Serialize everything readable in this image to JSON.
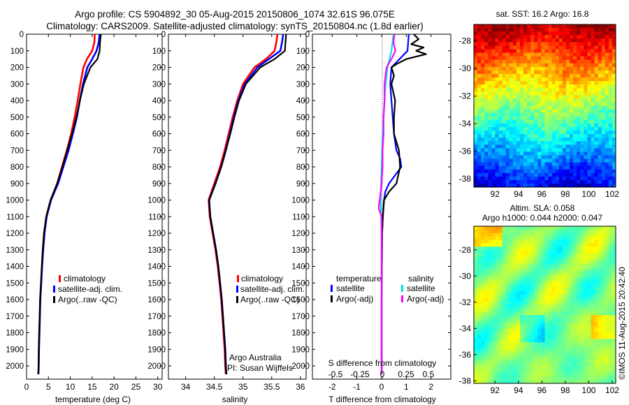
{
  "header": {
    "line1": "Argo profile: CS 5904892_30 05-Aug-2015 20150806_1074 32.61S 96.075E",
    "line2": "Climatology: CARS2009. Satellite-adjusted climatology: synTS_20150804.nc (1.8d earlier)"
  },
  "side_credit": "©IMOS 11-Aug-2015 20:42:40",
  "legend": {
    "climatology": "climatology",
    "satellite_adj": "satellite-adj. clim.",
    "argo": "Argo(..raw -QC)"
  },
  "attribution": {
    "line1": "Argo Australia",
    "line2": "PI: Susan Wijffels"
  },
  "diff_legend": {
    "temperature_head": "temperature",
    "salinity_head": "salinity",
    "satellite": "satellite",
    "argo_adj": "Argo(-adj)"
  },
  "colors": {
    "climatology": "#ff0000",
    "satellite": "#0000ff",
    "argo": "#000000",
    "temp_sat": "#0000ff",
    "temp_argo": "#000000",
    "sal_sat": "#00e0e0",
    "sal_argo": "#ff00ff"
  },
  "chart_data": [
    {
      "type": "line",
      "xlabel": "temperature (deg C)",
      "ylabel": "",
      "xlim": [
        0,
        31
      ],
      "ylim": [
        2080,
        0
      ],
      "x_ticks": [
        "0",
        "5",
        "10",
        "15",
        "20",
        "25",
        "30"
      ],
      "y_ticks": [
        "0",
        "100",
        "200",
        "300",
        "400",
        "500",
        "600",
        "700",
        "800",
        "900",
        "1000",
        "1100",
        "1200",
        "1300",
        "1400",
        "1500",
        "1600",
        "1700",
        "1800",
        "1900",
        "2000"
      ],
      "series": [
        {
          "name": "climatology",
          "depth": [
            0,
            50,
            100,
            150,
            200,
            300,
            400,
            500,
            600,
            700,
            800,
            900,
            1000,
            1100,
            1200,
            1300,
            1400,
            1500,
            1600,
            1700,
            1800,
            1900,
            2000,
            2050
          ],
          "values": [
            15.6,
            15.5,
            15.0,
            13.8,
            13.0,
            12.3,
            11.7,
            11.0,
            10.2,
            9.2,
            8.1,
            7.0,
            5.5,
            4.5,
            4.0,
            3.7,
            3.5,
            3.3,
            3.1,
            3.0,
            2.9,
            2.8,
            2.75,
            2.7
          ]
        },
        {
          "name": "satellite-adj. clim.",
          "depth": [
            0,
            50,
            100,
            150,
            200,
            300,
            400,
            500,
            600,
            700,
            800,
            900,
            1000,
            1100,
            1200,
            1300,
            1400,
            1500,
            1600,
            1700,
            1800,
            1900,
            2000,
            2050
          ],
          "values": [
            16.7,
            16.5,
            16.0,
            15.0,
            13.9,
            12.9,
            12.2,
            11.5,
            10.6,
            9.6,
            8.4,
            7.2,
            5.6,
            4.6,
            4.1,
            3.8,
            3.55,
            3.35,
            3.15,
            3.05,
            2.95,
            2.85,
            2.78,
            2.72
          ]
        },
        {
          "name": "Argo(..raw -QC)",
          "depth": [
            0,
            50,
            100,
            150,
            200,
            300,
            400,
            500,
            600,
            700,
            800,
            900,
            1000,
            1100,
            1200,
            1300,
            1400,
            1500,
            1600,
            1700,
            1800,
            1900,
            2000,
            2050
          ],
          "values": [
            17.0,
            16.8,
            16.7,
            16.2,
            14.6,
            13.1,
            12.2,
            11.4,
            10.4,
            9.3,
            8.2,
            7.0,
            5.5,
            4.5,
            4.0,
            3.7,
            3.5,
            3.3,
            3.1,
            3.0,
            2.9,
            2.8,
            2.75,
            2.7
          ]
        }
      ]
    },
    {
      "type": "line",
      "xlabel": "salinity",
      "ylabel": "",
      "xlim": [
        33.7,
        36.1
      ],
      "ylim": [
        2080,
        0
      ],
      "x_ticks": [
        "34",
        "34.5",
        "35",
        "35.5",
        "36"
      ],
      "series": [
        {
          "name": "climatology",
          "depth": [
            0,
            50,
            100,
            150,
            200,
            300,
            400,
            500,
            600,
            700,
            800,
            900,
            1000,
            1100,
            1200,
            1300,
            1400,
            1500,
            1600,
            1700,
            1800,
            1900,
            2000,
            2050
          ],
          "values": [
            35.6,
            35.58,
            35.55,
            35.4,
            35.2,
            35.0,
            34.9,
            34.82,
            34.75,
            34.68,
            34.6,
            34.5,
            34.4,
            34.42,
            34.47,
            34.52,
            34.56,
            34.59,
            34.62,
            34.64,
            34.66,
            34.68,
            34.69,
            34.7
          ]
        },
        {
          "name": "satellite-adj. clim.",
          "depth": [
            0,
            50,
            100,
            150,
            200,
            300,
            400,
            500,
            600,
            700,
            800,
            900,
            1000,
            1100,
            1200,
            1300,
            1400,
            1500,
            1600,
            1700,
            1800,
            1900,
            2000,
            2050
          ],
          "values": [
            35.7,
            35.68,
            35.65,
            35.45,
            35.25,
            35.03,
            34.92,
            34.84,
            34.77,
            34.7,
            34.62,
            34.52,
            34.41,
            34.43,
            34.48,
            34.53,
            34.57,
            34.6,
            34.63,
            34.65,
            34.67,
            34.69,
            34.7,
            34.71
          ]
        },
        {
          "name": "Argo(..raw -QC)",
          "depth": [
            0,
            50,
            100,
            150,
            200,
            300,
            400,
            500,
            600,
            700,
            800,
            900,
            1000,
            1100,
            1200,
            1300,
            1400,
            1500,
            1600,
            1700,
            1800,
            1900,
            2000,
            2050
          ],
          "values": [
            35.75,
            35.74,
            35.73,
            35.55,
            35.3,
            35.05,
            34.93,
            34.85,
            34.78,
            34.7,
            34.62,
            34.52,
            34.41,
            34.43,
            34.48,
            34.53,
            34.57,
            34.6,
            34.63,
            34.65,
            34.67,
            34.69,
            34.7,
            34.71
          ]
        }
      ]
    },
    {
      "type": "line",
      "xlabel": "T difference from climatology",
      "top_xlabel": "S difference from climatology",
      "xlim": [
        -2.8,
        2.8
      ],
      "ylim": [
        2080,
        0
      ],
      "x_ticks": [
        "-2",
        "-1",
        "0",
        "1",
        "2"
      ],
      "top_ticks": [
        "-0.5",
        "-0.25",
        "0",
        "0.25",
        "0.5"
      ],
      "series": [
        {
          "name": "temperature satellite",
          "depth": [
            0,
            100,
            200,
            300,
            400,
            500,
            600,
            700,
            750,
            800,
            850,
            900,
            950,
            1000,
            1100,
            1200,
            1400,
            1600,
            1800,
            2000,
            2050
          ],
          "values": [
            1.1,
            1.05,
            0.4,
            0.35,
            0.4,
            0.45,
            0.5,
            0.6,
            0.75,
            0.8,
            0.55,
            0.3,
            0.15,
            0.1,
            0.05,
            0.02,
            0.01,
            0.0,
            0.0,
            0.0,
            0.0
          ]
        },
        {
          "name": "temperature Argo(-adj)",
          "depth": [
            0,
            30,
            60,
            80,
            100,
            120,
            150,
            180,
            200,
            250,
            300,
            400,
            500,
            600,
            700,
            800,
            900,
            950,
            1000,
            1100,
            1200,
            1400,
            1600,
            1800,
            2000,
            2050
          ],
          "values": [
            1.3,
            1.5,
            1.2,
            1.7,
            1.4,
            1.8,
            1.0,
            0.6,
            0.4,
            0.5,
            0.4,
            0.55,
            0.5,
            0.5,
            0.7,
            0.75,
            0.6,
            0.3,
            0.1,
            0.05,
            0.02,
            0.01,
            0.0,
            0.0,
            0.0,
            0.0
          ]
        },
        {
          "name": "salinity satellite",
          "depth": [
            0,
            50,
            100,
            150,
            200,
            300,
            400,
            500,
            600,
            800,
            1000,
            1200,
            1400,
            1600,
            1800,
            2000,
            2050
          ],
          "values": [
            0.12,
            0.11,
            0.1,
            0.08,
            0.06,
            0.04,
            0.03,
            0.02,
            0.01,
            0.0,
            -0.01,
            0.0,
            0.0,
            0.0,
            0.0,
            0.0,
            0.0
          ]
        },
        {
          "name": "salinity Argo(-adj)",
          "depth": [
            0,
            50,
            100,
            150,
            200,
            300,
            400,
            500,
            600,
            700,
            800,
            900,
            1000,
            1050,
            1100,
            1200,
            1400,
            1600,
            1800,
            2000,
            2050
          ],
          "values": [
            0.13,
            0.12,
            0.14,
            0.1,
            0.05,
            0.03,
            0.03,
            0.02,
            0.02,
            0.01,
            0.01,
            0.0,
            -0.02,
            -0.03,
            0.0,
            0.0,
            0.0,
            0.0,
            0.0,
            0.0,
            0.0
          ]
        }
      ]
    },
    {
      "type": "heatmap",
      "title": "sat. SST: 16.2  Argo: 16.8",
      "x_ticks": [
        "92",
        "94",
        "96",
        "98",
        "100",
        "102"
      ],
      "y_ticks": [
        "-28",
        "-30",
        "-32",
        "-34",
        "-36",
        "-38"
      ],
      "xlim": [
        90.2,
        102.3
      ],
      "ylim": [
        -38.6,
        -26.8
      ]
    },
    {
      "type": "heatmap",
      "title_line1": "Altim. SLA: 0.058",
      "title_line2": "Argo h1000: 0.044 h2000: 0.047",
      "x_ticks": [
        "92",
        "94",
        "96",
        "98",
        "100",
        "102"
      ],
      "y_ticks": [
        "-28",
        "-30",
        "-32",
        "-34",
        "-36",
        "-38"
      ],
      "xlim": [
        90.2,
        102.3
      ],
      "ylim": [
        -38.2,
        -26.2
      ]
    }
  ]
}
